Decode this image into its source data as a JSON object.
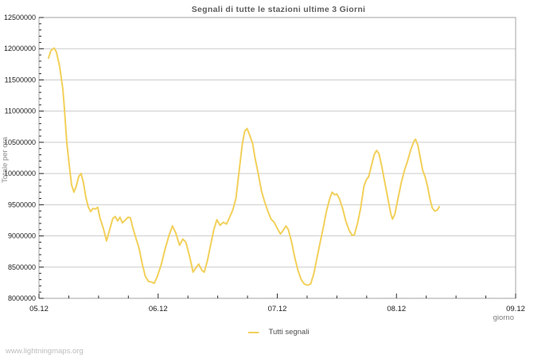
{
  "page": {
    "watermark": "www.lightningmaps.org"
  },
  "chart_data": {
    "type": "line",
    "title": "Segnali di tutte le stazioni ultime 3 Giorni",
    "xlabel": "giorno",
    "ylabel": "Totale per ora",
    "xlim": [
      0,
      4
    ],
    "ylim": [
      8000000,
      12500000
    ],
    "x_ticks": [
      {
        "pos": 0,
        "label": "05.12"
      },
      {
        "pos": 1,
        "label": "06.12"
      },
      {
        "pos": 2,
        "label": "07.12"
      },
      {
        "pos": 3,
        "label": "08.12"
      },
      {
        "pos": 4,
        "label": "09.12"
      }
    ],
    "x_minor_step": 0.25,
    "y_ticks": [
      8000000,
      8500000,
      9000000,
      9500000,
      10000000,
      10500000,
      11000000,
      11500000,
      12000000,
      12500000
    ],
    "y_minor_step": 100000,
    "grid": "horizontal",
    "legend_position": "bottom-center",
    "colors": {
      "series": "#f2d05a",
      "grid": "#cccccc",
      "frame": "#a3a3a3",
      "tick": "#2a2a2a",
      "text": "#1c1c1c"
    },
    "series": [
      {
        "name": "Tutti segnali",
        "color": "#f2d05a",
        "points": [
          [
            0.08,
            11850000
          ],
          [
            0.1,
            11970000
          ],
          [
            0.127,
            12010000
          ],
          [
            0.147,
            11940000
          ],
          [
            0.173,
            11720000
          ],
          [
            0.2,
            11350000
          ],
          [
            0.213,
            11050000
          ],
          [
            0.233,
            10500000
          ],
          [
            0.253,
            10150000
          ],
          [
            0.273,
            9820000
          ],
          [
            0.293,
            9700000
          ],
          [
            0.313,
            9800000
          ],
          [
            0.333,
            9950000
          ],
          [
            0.353,
            10000000
          ],
          [
            0.373,
            9850000
          ],
          [
            0.393,
            9620000
          ],
          [
            0.413,
            9470000
          ],
          [
            0.433,
            9390000
          ],
          [
            0.453,
            9440000
          ],
          [
            0.473,
            9430000
          ],
          [
            0.493,
            9460000
          ],
          [
            0.513,
            9280000
          ],
          [
            0.54,
            9120000
          ],
          [
            0.567,
            8920000
          ],
          [
            0.593,
            9100000
          ],
          [
            0.62,
            9280000
          ],
          [
            0.64,
            9310000
          ],
          [
            0.66,
            9240000
          ],
          [
            0.68,
            9300000
          ],
          [
            0.7,
            9210000
          ],
          [
            0.727,
            9260000
          ],
          [
            0.747,
            9300000
          ],
          [
            0.767,
            9290000
          ],
          [
            0.787,
            9130000
          ],
          [
            0.813,
            8970000
          ],
          [
            0.84,
            8800000
          ],
          [
            0.867,
            8550000
          ],
          [
            0.893,
            8350000
          ],
          [
            0.92,
            8270000
          ],
          [
            0.947,
            8260000
          ],
          [
            0.967,
            8240000
          ],
          [
            0.993,
            8350000
          ],
          [
            1.027,
            8550000
          ],
          [
            1.06,
            8800000
          ],
          [
            1.093,
            9020000
          ],
          [
            1.12,
            9160000
          ],
          [
            1.147,
            9050000
          ],
          [
            1.18,
            8850000
          ],
          [
            1.207,
            8950000
          ],
          [
            1.233,
            8900000
          ],
          [
            1.267,
            8650000
          ],
          [
            1.293,
            8420000
          ],
          [
            1.32,
            8500000
          ],
          [
            1.34,
            8550000
          ],
          [
            1.367,
            8450000
          ],
          [
            1.387,
            8420000
          ],
          [
            1.413,
            8600000
          ],
          [
            1.44,
            8850000
          ],
          [
            1.467,
            9100000
          ],
          [
            1.493,
            9260000
          ],
          [
            1.52,
            9170000
          ],
          [
            1.547,
            9220000
          ],
          [
            1.573,
            9190000
          ],
          [
            1.6,
            9300000
          ],
          [
            1.627,
            9420000
          ],
          [
            1.653,
            9600000
          ],
          [
            1.68,
            10050000
          ],
          [
            1.707,
            10480000
          ],
          [
            1.727,
            10680000
          ],
          [
            1.747,
            10720000
          ],
          [
            1.767,
            10620000
          ],
          [
            1.793,
            10480000
          ],
          [
            1.813,
            10250000
          ],
          [
            1.84,
            10000000
          ],
          [
            1.867,
            9720000
          ],
          [
            1.893,
            9550000
          ],
          [
            1.92,
            9400000
          ],
          [
            1.947,
            9270000
          ],
          [
            1.973,
            9220000
          ],
          [
            2.0,
            9120000
          ],
          [
            2.027,
            9030000
          ],
          [
            2.053,
            9100000
          ],
          [
            2.073,
            9160000
          ],
          [
            2.093,
            9100000
          ],
          [
            2.12,
            8900000
          ],
          [
            2.147,
            8650000
          ],
          [
            2.173,
            8450000
          ],
          [
            2.2,
            8300000
          ],
          [
            2.227,
            8230000
          ],
          [
            2.253,
            8210000
          ],
          [
            2.28,
            8230000
          ],
          [
            2.307,
            8400000
          ],
          [
            2.333,
            8650000
          ],
          [
            2.36,
            8900000
          ],
          [
            2.387,
            9150000
          ],
          [
            2.413,
            9400000
          ],
          [
            2.44,
            9600000
          ],
          [
            2.46,
            9700000
          ],
          [
            2.48,
            9660000
          ],
          [
            2.5,
            9670000
          ],
          [
            2.52,
            9600000
          ],
          [
            2.547,
            9450000
          ],
          [
            2.573,
            9250000
          ],
          [
            2.6,
            9100000
          ],
          [
            2.627,
            9010000
          ],
          [
            2.647,
            9020000
          ],
          [
            2.673,
            9200000
          ],
          [
            2.7,
            9450000
          ],
          [
            2.727,
            9800000
          ],
          [
            2.747,
            9900000
          ],
          [
            2.767,
            9950000
          ],
          [
            2.793,
            10150000
          ],
          [
            2.813,
            10300000
          ],
          [
            2.833,
            10370000
          ],
          [
            2.853,
            10320000
          ],
          [
            2.873,
            10150000
          ],
          [
            2.893,
            9950000
          ],
          [
            2.913,
            9750000
          ],
          [
            2.933,
            9550000
          ],
          [
            2.953,
            9350000
          ],
          [
            2.967,
            9270000
          ],
          [
            2.987,
            9350000
          ],
          [
            3.013,
            9600000
          ],
          [
            3.04,
            9850000
          ],
          [
            3.067,
            10050000
          ],
          [
            3.093,
            10200000
          ],
          [
            3.12,
            10380000
          ],
          [
            3.147,
            10520000
          ],
          [
            3.16,
            10550000
          ],
          [
            3.18,
            10450000
          ],
          [
            3.2,
            10250000
          ],
          [
            3.22,
            10050000
          ],
          [
            3.24,
            9950000
          ],
          [
            3.26,
            9800000
          ],
          [
            3.28,
            9600000
          ],
          [
            3.3,
            9450000
          ],
          [
            3.32,
            9400000
          ],
          [
            3.34,
            9410000
          ],
          [
            3.36,
            9470000
          ]
        ]
      }
    ]
  }
}
